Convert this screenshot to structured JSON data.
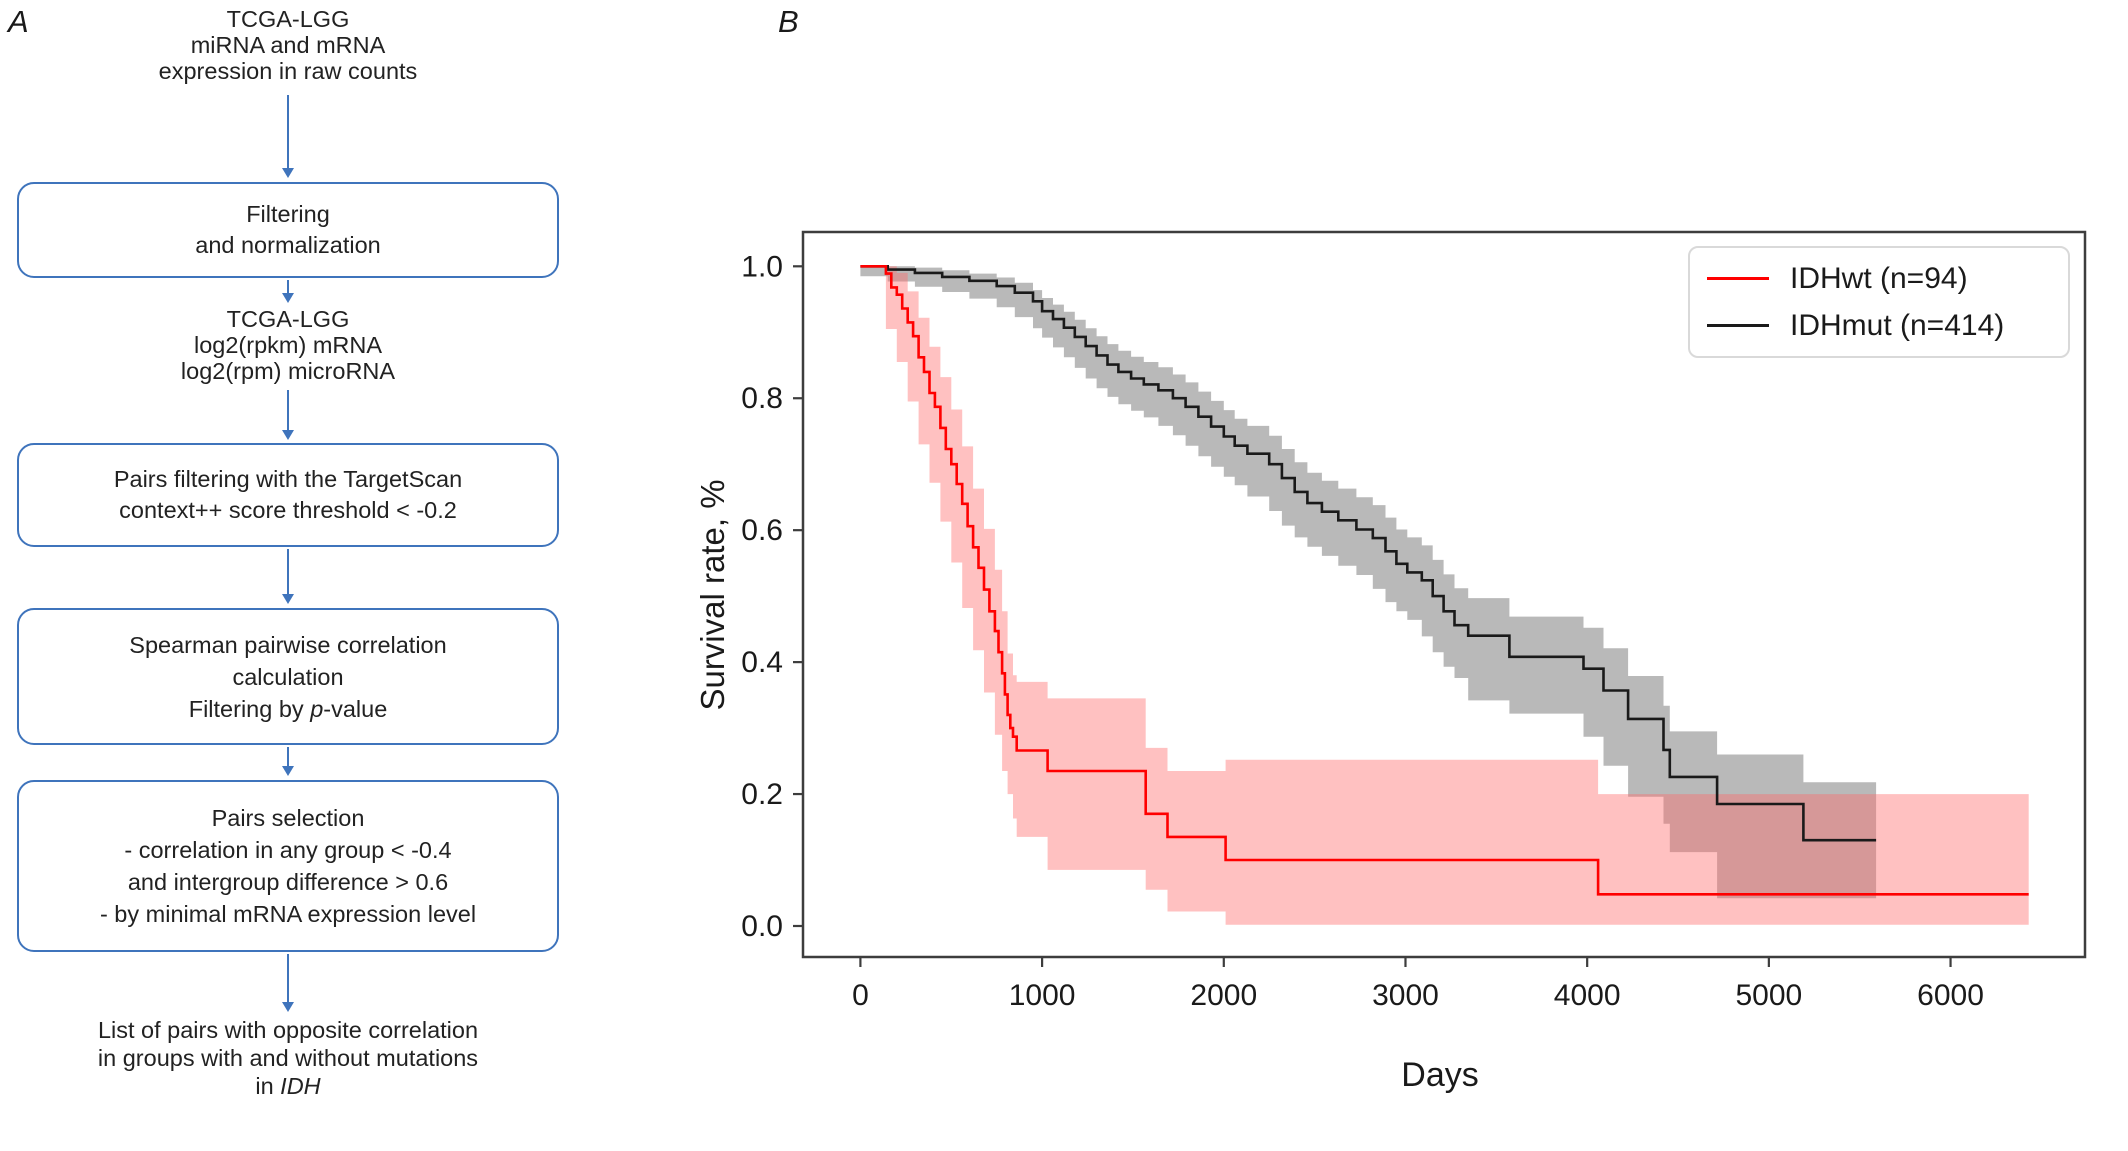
{
  "figure": {
    "panel_a_label": "A",
    "panel_b_label": "B"
  },
  "flowchart": {
    "accent_color": "#3f74bc",
    "text_color": "#222222",
    "nodes": [
      {
        "kind": "plain",
        "lines": [
          "TCGA-LGG",
          "miRNA and mRNA",
          "expression in raw counts"
        ]
      },
      {
        "kind": "box",
        "lines": [
          "Filtering",
          "and normalization"
        ]
      },
      {
        "kind": "plain",
        "lines": [
          "TCGA-LGG",
          "log2(rpkm) mRNA",
          "log2(rpm) microRNA"
        ]
      },
      {
        "kind": "box",
        "lines": [
          "Pairs filtering with the TargetScan",
          "context++ score threshold < -0.2"
        ]
      },
      {
        "kind": "box",
        "lines": [
          "Spearman pairwise correlation",
          "calculation",
          "Filtering by *p*-value"
        ]
      },
      {
        "kind": "box",
        "lines": [
          "Pairs selection",
          "- correlation in any group < -0.4",
          "and intergroup difference > 0.6",
          "- by minimal mRNA expression level"
        ]
      },
      {
        "kind": "plain",
        "lines": [
          "List of pairs with opposite correlation",
          "in groups with and without mutations",
          "in *IDH*"
        ]
      }
    ]
  },
  "chart_data": {
    "type": "line",
    "subtype": "kaplan-meier-step",
    "title": "",
    "xlabel": "Days",
    "ylabel": "Survival rate, %",
    "x_ticks": [
      0,
      1000,
      2000,
      3000,
      4000,
      5000,
      6000
    ],
    "y_ticks": [
      "0.0",
      "0.2",
      "0.4",
      "0.6",
      "0.8",
      "1.0"
    ],
    "x_range": [
      -316,
      6740
    ],
    "y_range": [
      -0.047,
      1.052
    ],
    "grid": false,
    "legend_position": "top-right",
    "axis_color": "#3d3d3d",
    "text_color": "#1a1a1a",
    "legend": [
      {
        "label": "IDHwt (n=94)",
        "color": "#ff0000"
      },
      {
        "label": "IDHmut (n=414)",
        "color": "#1a1a1a"
      }
    ],
    "series": [
      {
        "name": "IDHwt (n=94)",
        "n": 94,
        "color": "#ff0000",
        "band_color": "#ff6b6b",
        "band_opacity": 0.42,
        "steps": [
          [
            0,
            1.0
          ],
          [
            140,
            0.989
          ],
          [
            170,
            0.968
          ],
          [
            200,
            0.957
          ],
          [
            230,
            0.936
          ],
          [
            260,
            0.915
          ],
          [
            290,
            0.894
          ],
          [
            320,
            0.862
          ],
          [
            350,
            0.84
          ],
          [
            380,
            0.808
          ],
          [
            410,
            0.787
          ],
          [
            440,
            0.755
          ],
          [
            470,
            0.723
          ],
          [
            500,
            0.7
          ],
          [
            530,
            0.67
          ],
          [
            560,
            0.64
          ],
          [
            590,
            0.606
          ],
          [
            620,
            0.574
          ],
          [
            650,
            0.543
          ],
          [
            680,
            0.51
          ],
          [
            710,
            0.477
          ],
          [
            740,
            0.447
          ],
          [
            760,
            0.415
          ],
          [
            780,
            0.383
          ],
          [
            795,
            0.351
          ],
          [
            810,
            0.32
          ],
          [
            825,
            0.3
          ],
          [
            840,
            0.287
          ],
          [
            860,
            0.266
          ],
          [
            1030,
            0.235
          ],
          [
            1570,
            0.17
          ],
          [
            1690,
            0.135
          ],
          [
            2010,
            0.1
          ],
          [
            4060,
            0.048
          ],
          [
            6430,
            0.048
          ]
        ],
        "band": [
          [
            140,
            0.955,
            1.0
          ],
          [
            200,
            0.905,
            0.99
          ],
          [
            260,
            0.855,
            0.962
          ],
          [
            320,
            0.795,
            0.922
          ],
          [
            380,
            0.73,
            0.878
          ],
          [
            440,
            0.672,
            0.832
          ],
          [
            500,
            0.613,
            0.783
          ],
          [
            560,
            0.551,
            0.727
          ],
          [
            620,
            0.482,
            0.663
          ],
          [
            680,
            0.418,
            0.602
          ],
          [
            740,
            0.354,
            0.54
          ],
          [
            780,
            0.29,
            0.477
          ],
          [
            810,
            0.235,
            0.413
          ],
          [
            840,
            0.2,
            0.38
          ],
          [
            860,
            0.163,
            0.37
          ],
          [
            1030,
            0.135,
            0.345
          ],
          [
            1570,
            0.085,
            0.27
          ],
          [
            1690,
            0.055,
            0.235
          ],
          [
            2010,
            0.022,
            0.252
          ],
          [
            4060,
            0.002,
            0.2
          ],
          [
            6430,
            0.002,
            0.2
          ]
        ]
      },
      {
        "name": "IDHmut (n=414)",
        "n": 414,
        "color": "#1a1a1a",
        "band_color": "#808080",
        "band_opacity": 0.55,
        "steps": [
          [
            0,
            1.0
          ],
          [
            150,
            0.995
          ],
          [
            300,
            0.99
          ],
          [
            450,
            0.984
          ],
          [
            600,
            0.978
          ],
          [
            750,
            0.97
          ],
          [
            850,
            0.96
          ],
          [
            950,
            0.947
          ],
          [
            1000,
            0.932
          ],
          [
            1060,
            0.92
          ],
          [
            1120,
            0.907
          ],
          [
            1180,
            0.893
          ],
          [
            1240,
            0.879
          ],
          [
            1300,
            0.865
          ],
          [
            1360,
            0.851
          ],
          [
            1420,
            0.84
          ],
          [
            1490,
            0.83
          ],
          [
            1560,
            0.821
          ],
          [
            1640,
            0.812
          ],
          [
            1720,
            0.8
          ],
          [
            1790,
            0.787
          ],
          [
            1860,
            0.772
          ],
          [
            1930,
            0.757
          ],
          [
            2000,
            0.742
          ],
          [
            2060,
            0.728
          ],
          [
            2130,
            0.716
          ],
          [
            2250,
            0.7
          ],
          [
            2320,
            0.679
          ],
          [
            2390,
            0.658
          ],
          [
            2460,
            0.641
          ],
          [
            2540,
            0.628
          ],
          [
            2630,
            0.615
          ],
          [
            2730,
            0.601
          ],
          [
            2820,
            0.588
          ],
          [
            2890,
            0.568
          ],
          [
            2950,
            0.549
          ],
          [
            3010,
            0.536
          ],
          [
            3090,
            0.524
          ],
          [
            3150,
            0.5
          ],
          [
            3210,
            0.477
          ],
          [
            3270,
            0.456
          ],
          [
            3345,
            0.44
          ],
          [
            3572,
            0.408
          ],
          [
            3980,
            0.39
          ],
          [
            4090,
            0.357
          ],
          [
            4225,
            0.314
          ],
          [
            4420,
            0.267
          ],
          [
            4455,
            0.226
          ],
          [
            4715,
            0.185
          ],
          [
            5190,
            0.13
          ],
          [
            5590,
            0.13
          ]
        ],
        "band": [
          [
            0,
            0.998,
            1.0
          ],
          [
            150,
            0.985,
            1.0
          ],
          [
            300,
            0.977,
            0.998
          ],
          [
            450,
            0.969,
            0.994
          ],
          [
            600,
            0.961,
            0.989
          ],
          [
            750,
            0.951,
            0.983
          ],
          [
            850,
            0.938,
            0.975
          ],
          [
            950,
            0.923,
            0.964
          ],
          [
            1000,
            0.906,
            0.952
          ],
          [
            1060,
            0.892,
            0.942
          ],
          [
            1120,
            0.877,
            0.931
          ],
          [
            1180,
            0.862,
            0.919
          ],
          [
            1240,
            0.846,
            0.906
          ],
          [
            1300,
            0.83,
            0.894
          ],
          [
            1360,
            0.815,
            0.882
          ],
          [
            1420,
            0.802,
            0.872
          ],
          [
            1490,
            0.791,
            0.863
          ],
          [
            1560,
            0.781,
            0.855
          ],
          [
            1640,
            0.771,
            0.847
          ],
          [
            1720,
            0.758,
            0.836
          ],
          [
            1790,
            0.744,
            0.824
          ],
          [
            1860,
            0.728,
            0.81
          ],
          [
            1930,
            0.712,
            0.796
          ],
          [
            2000,
            0.696,
            0.782
          ],
          [
            2060,
            0.681,
            0.769
          ],
          [
            2130,
            0.668,
            0.758
          ],
          [
            2250,
            0.651,
            0.743
          ],
          [
            2320,
            0.629,
            0.723
          ],
          [
            2390,
            0.607,
            0.703
          ],
          [
            2460,
            0.589,
            0.687
          ],
          [
            2540,
            0.575,
            0.675
          ],
          [
            2630,
            0.561,
            0.663
          ],
          [
            2730,
            0.546,
            0.65
          ],
          [
            2820,
            0.532,
            0.638
          ],
          [
            2890,
            0.511,
            0.619
          ],
          [
            2950,
            0.491,
            0.601
          ],
          [
            3010,
            0.477,
            0.589
          ],
          [
            3090,
            0.464,
            0.577
          ],
          [
            3150,
            0.439,
            0.555
          ],
          [
            3210,
            0.415,
            0.533
          ],
          [
            3270,
            0.393,
            0.512
          ],
          [
            3345,
            0.376,
            0.497
          ],
          [
            3572,
            0.342,
            0.469
          ],
          [
            3980,
            0.322,
            0.452
          ],
          [
            4090,
            0.287,
            0.421
          ],
          [
            4225,
            0.243,
            0.379
          ],
          [
            4420,
            0.196,
            0.334
          ],
          [
            4455,
            0.155,
            0.295
          ],
          [
            4715,
            0.112,
            0.26
          ],
          [
            5190,
            0.042,
            0.218
          ],
          [
            5590,
            0.042,
            0.218
          ]
        ]
      }
    ]
  }
}
